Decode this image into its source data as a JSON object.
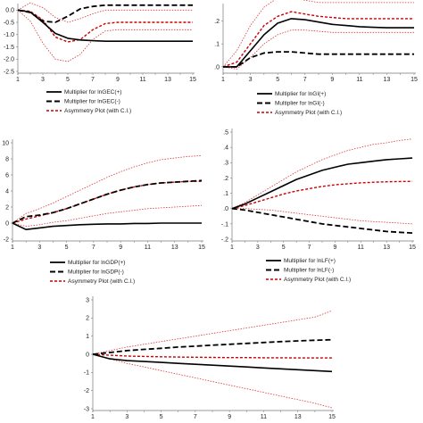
{
  "chart_data": [
    {
      "type": "line",
      "x": [
        1,
        2,
        3,
        4,
        5,
        6,
        7,
        8,
        9,
        10,
        11,
        12,
        13,
        14,
        15
      ],
      "x_ticks": [
        "1",
        "3",
        "5",
        "7",
        "9",
        "11",
        "13",
        "15"
      ],
      "y_ticks": [
        "0.0",
        "-0.5",
        "-1.0",
        "-1.5",
        "-2.0",
        "-2.5"
      ],
      "ylim": [
        -2.5,
        0.12
      ],
      "series": [
        {
          "name": "Multiplier for lnGEC(+)",
          "style": "solid-black",
          "values": [
            0,
            -0.08,
            -0.5,
            -0.95,
            -1.15,
            -1.22,
            -1.25,
            -1.27,
            -1.27,
            -1.27,
            -1.27,
            -1.27,
            -1.27,
            -1.27,
            -1.27
          ]
        },
        {
          "name": "Multiplier for lnGEC(-)",
          "style": "dashed-black",
          "values": [
            0,
            -0.1,
            -0.45,
            -0.5,
            -0.25,
            0.05,
            0.15,
            0.2,
            0.2,
            0.2,
            0.2,
            0.2,
            0.2,
            0.2,
            0.2
          ]
        },
        {
          "name": "Asymmetry Plot (with C.I.)",
          "style": "dashed-red",
          "values": [
            0,
            -0.05,
            -0.4,
            -1.1,
            -1.3,
            -1.2,
            -0.8,
            -0.55,
            -0.5,
            -0.5,
            -0.5,
            -0.5,
            -0.5,
            -0.5,
            -0.5
          ]
        },
        {
          "name": "",
          "style": "dotted-red",
          "values": [
            0,
            -0.45,
            -1.35,
            -2.0,
            -2.1,
            -1.8,
            -1.2,
            -0.85,
            -0.8,
            -0.8,
            -0.8,
            -0.8,
            -0.8,
            -0.8,
            -0.8
          ]
        },
        {
          "name": "",
          "style": "dotted-red",
          "values": [
            0,
            0.3,
            0.1,
            -0.3,
            -0.5,
            -0.35,
            -0.15,
            0.0,
            0.0,
            0.0,
            0.0,
            0.0,
            0.0,
            0.0,
            0.0
          ]
        }
      ]
    },
    {
      "type": "line",
      "x": [
        1,
        2,
        3,
        4,
        5,
        6,
        7,
        8,
        9,
        10,
        11,
        12,
        13,
        14,
        15
      ],
      "x_ticks": [
        "1",
        "3",
        "5",
        "7",
        "9",
        "11",
        "13",
        "15"
      ],
      "y_ticks": [
        ".2",
        ".1",
        ".0"
      ],
      "ylim": [
        -0.02,
        0.26
      ],
      "series": [
        {
          "name": "Multiplier for lnGI(+)",
          "style": "solid-black",
          "values": [
            0,
            0,
            0.07,
            0.14,
            0.19,
            0.21,
            0.205,
            0.195,
            0.185,
            0.18,
            0.175,
            0.172,
            0.17,
            0.17,
            0.17
          ]
        },
        {
          "name": "Multiplier for lnGI(-)",
          "style": "dashed-black",
          "values": [
            0,
            0,
            0.04,
            0.06,
            0.065,
            0.065,
            0.06,
            0.055,
            0.055,
            0.055,
            0.055,
            0.055,
            0.055,
            0.055,
            0.055
          ]
        },
        {
          "name": "Asymmetry Plot (with C.I.)",
          "style": "dashed-red",
          "values": [
            0,
            0.02,
            0.1,
            0.18,
            0.22,
            0.24,
            0.23,
            0.22,
            0.215,
            0.21,
            0.21,
            0.21,
            0.21,
            0.21,
            0.21
          ]
        },
        {
          "name": "",
          "style": "dotted-red",
          "values": [
            0,
            0.07,
            0.18,
            0.26,
            0.3,
            0.3,
            0.29,
            0.28,
            0.28,
            0.28,
            0.28,
            0.28,
            0.28,
            0.28,
            0.28
          ]
        },
        {
          "name": "",
          "style": "dotted-red",
          "values": [
            0,
            -0.01,
            0.04,
            0.1,
            0.14,
            0.16,
            0.16,
            0.155,
            0.15,
            0.15,
            0.15,
            0.15,
            0.15,
            0.15,
            0.15
          ]
        }
      ]
    },
    {
      "type": "line",
      "x": [
        1,
        2,
        3,
        4,
        5,
        6,
        7,
        8,
        9,
        10,
        11,
        12,
        13,
        14,
        15
      ],
      "x_ticks": [
        "1",
        "3",
        "5",
        "7",
        "9",
        "11",
        "13",
        "15"
      ],
      "y_ticks": [
        "10",
        "8",
        "6",
        "4",
        "2",
        "0",
        "-2"
      ],
      "ylim": [
        -2,
        10
      ],
      "series": [
        {
          "name": "Multiplier for lnGDP(+)",
          "style": "solid-black",
          "values": [
            0,
            -0.8,
            -0.6,
            -0.4,
            -0.3,
            -0.2,
            -0.15,
            -0.1,
            -0.1,
            -0.05,
            -0.05,
            0,
            0,
            0,
            0
          ]
        },
        {
          "name": "Multiplier for lnGDP(-)",
          "style": "dashed-black",
          "values": [
            0,
            0.8,
            1.0,
            1.3,
            1.8,
            2.4,
            3.0,
            3.6,
            4.1,
            4.5,
            4.8,
            5.0,
            5.1,
            5.2,
            5.3
          ]
        },
        {
          "name": "Asymmetry Plot (with C.I.)",
          "style": "dashed-red",
          "values": [
            0,
            0.5,
            0.9,
            1.3,
            1.8,
            2.4,
            3.0,
            3.6,
            4.1,
            4.5,
            4.8,
            5.0,
            5.1,
            5.2,
            5.2
          ]
        },
        {
          "name": "",
          "style": "dotted-red",
          "values": [
            0,
            1.2,
            1.8,
            2.5,
            3.3,
            4.1,
            4.9,
            5.7,
            6.4,
            7.0,
            7.5,
            7.9,
            8.1,
            8.3,
            8.4
          ]
        },
        {
          "name": "",
          "style": "dotted-red",
          "values": [
            0,
            -0.4,
            -0.2,
            0.1,
            0.3,
            0.6,
            0.9,
            1.2,
            1.4,
            1.6,
            1.8,
            1.9,
            2.0,
            2.1,
            2.2
          ]
        }
      ]
    },
    {
      "type": "line",
      "x": [
        1,
        2,
        3,
        4,
        5,
        6,
        7,
        8,
        9,
        10,
        11,
        12,
        13,
        14,
        15
      ],
      "x_ticks": [
        "1",
        "3",
        "5",
        "7",
        "9",
        "11",
        "13",
        "15"
      ],
      "y_ticks": [
        ".5",
        ".4",
        ".3",
        ".2",
        ".1",
        ".0",
        "-.1",
        "-.2"
      ],
      "ylim": [
        -0.2,
        0.5
      ],
      "series": [
        {
          "name": "Multiplier for lnLF(+)",
          "style": "solid-black",
          "values": [
            0,
            0.03,
            0.07,
            0.11,
            0.15,
            0.19,
            0.22,
            0.25,
            0.27,
            0.29,
            0.3,
            0.31,
            0.32,
            0.325,
            0.33
          ]
        },
        {
          "name": "Multiplier for lnLF(-)",
          "style": "dashed-black",
          "values": [
            0,
            -0.01,
            -0.025,
            -0.04,
            -0.055,
            -0.07,
            -0.085,
            -0.1,
            -0.11,
            -0.12,
            -0.13,
            -0.14,
            -0.15,
            -0.155,
            -0.16
          ]
        },
        {
          "name": "Asymmetry Plot (with C.I.)",
          "style": "dashed-red",
          "values": [
            0,
            0.02,
            0.045,
            0.07,
            0.095,
            0.115,
            0.13,
            0.145,
            0.155,
            0.162,
            0.168,
            0.172,
            0.175,
            0.177,
            0.178
          ]
        },
        {
          "name": "",
          "style": "dotted-red",
          "values": [
            0,
            0.04,
            0.09,
            0.14,
            0.19,
            0.24,
            0.28,
            0.32,
            0.35,
            0.38,
            0.4,
            0.42,
            0.43,
            0.445,
            0.455
          ]
        },
        {
          "name": "",
          "style": "dotted-red",
          "values": [
            0,
            0.0,
            -0.005,
            -0.01,
            -0.02,
            -0.03,
            -0.04,
            -0.05,
            -0.06,
            -0.07,
            -0.08,
            -0.085,
            -0.09,
            -0.095,
            -0.1
          ]
        }
      ]
    },
    {
      "type": "line",
      "x": [
        1,
        2,
        3,
        4,
        5,
        6,
        7,
        8,
        9,
        10,
        11,
        12,
        13,
        14,
        15
      ],
      "x_ticks": [
        "1",
        "3",
        "5",
        "7",
        "9",
        "11",
        "13",
        "15"
      ],
      "y_ticks": [
        "3",
        "2",
        "1",
        "0",
        "-1",
        "-2",
        "-3"
      ],
      "ylim": [
        -3,
        3
      ],
      "series": [
        {
          "name": "",
          "style": "solid-black",
          "values": [
            0,
            -0.25,
            -0.35,
            -0.4,
            -0.45,
            -0.5,
            -0.55,
            -0.6,
            -0.65,
            -0.7,
            -0.75,
            -0.8,
            -0.85,
            -0.9,
            -0.95
          ]
        },
        {
          "name": "",
          "style": "dashed-black",
          "values": [
            0,
            0.1,
            0.2,
            0.27,
            0.33,
            0.4,
            0.45,
            0.5,
            0.55,
            0.6,
            0.65,
            0.7,
            0.74,
            0.77,
            0.8
          ]
        },
        {
          "name": "",
          "style": "dashed-red",
          "values": [
            0,
            -0.05,
            -0.1,
            -0.12,
            -0.14,
            -0.15,
            -0.16,
            -0.17,
            -0.18,
            -0.18,
            -0.19,
            -0.19,
            -0.2,
            -0.2,
            -0.2
          ]
        },
        {
          "name": "",
          "style": "dotted-red",
          "values": [
            0,
            0.2,
            0.4,
            0.55,
            0.7,
            0.85,
            1.0,
            1.15,
            1.3,
            1.45,
            1.6,
            1.75,
            1.9,
            2.05,
            2.4
          ]
        },
        {
          "name": "",
          "style": "dotted-red",
          "values": [
            0,
            -0.25,
            -0.5,
            -0.7,
            -0.9,
            -1.1,
            -1.3,
            -1.5,
            -1.7,
            -1.9,
            -2.1,
            -2.3,
            -2.5,
            -2.7,
            -2.95
          ]
        }
      ]
    }
  ]
}
